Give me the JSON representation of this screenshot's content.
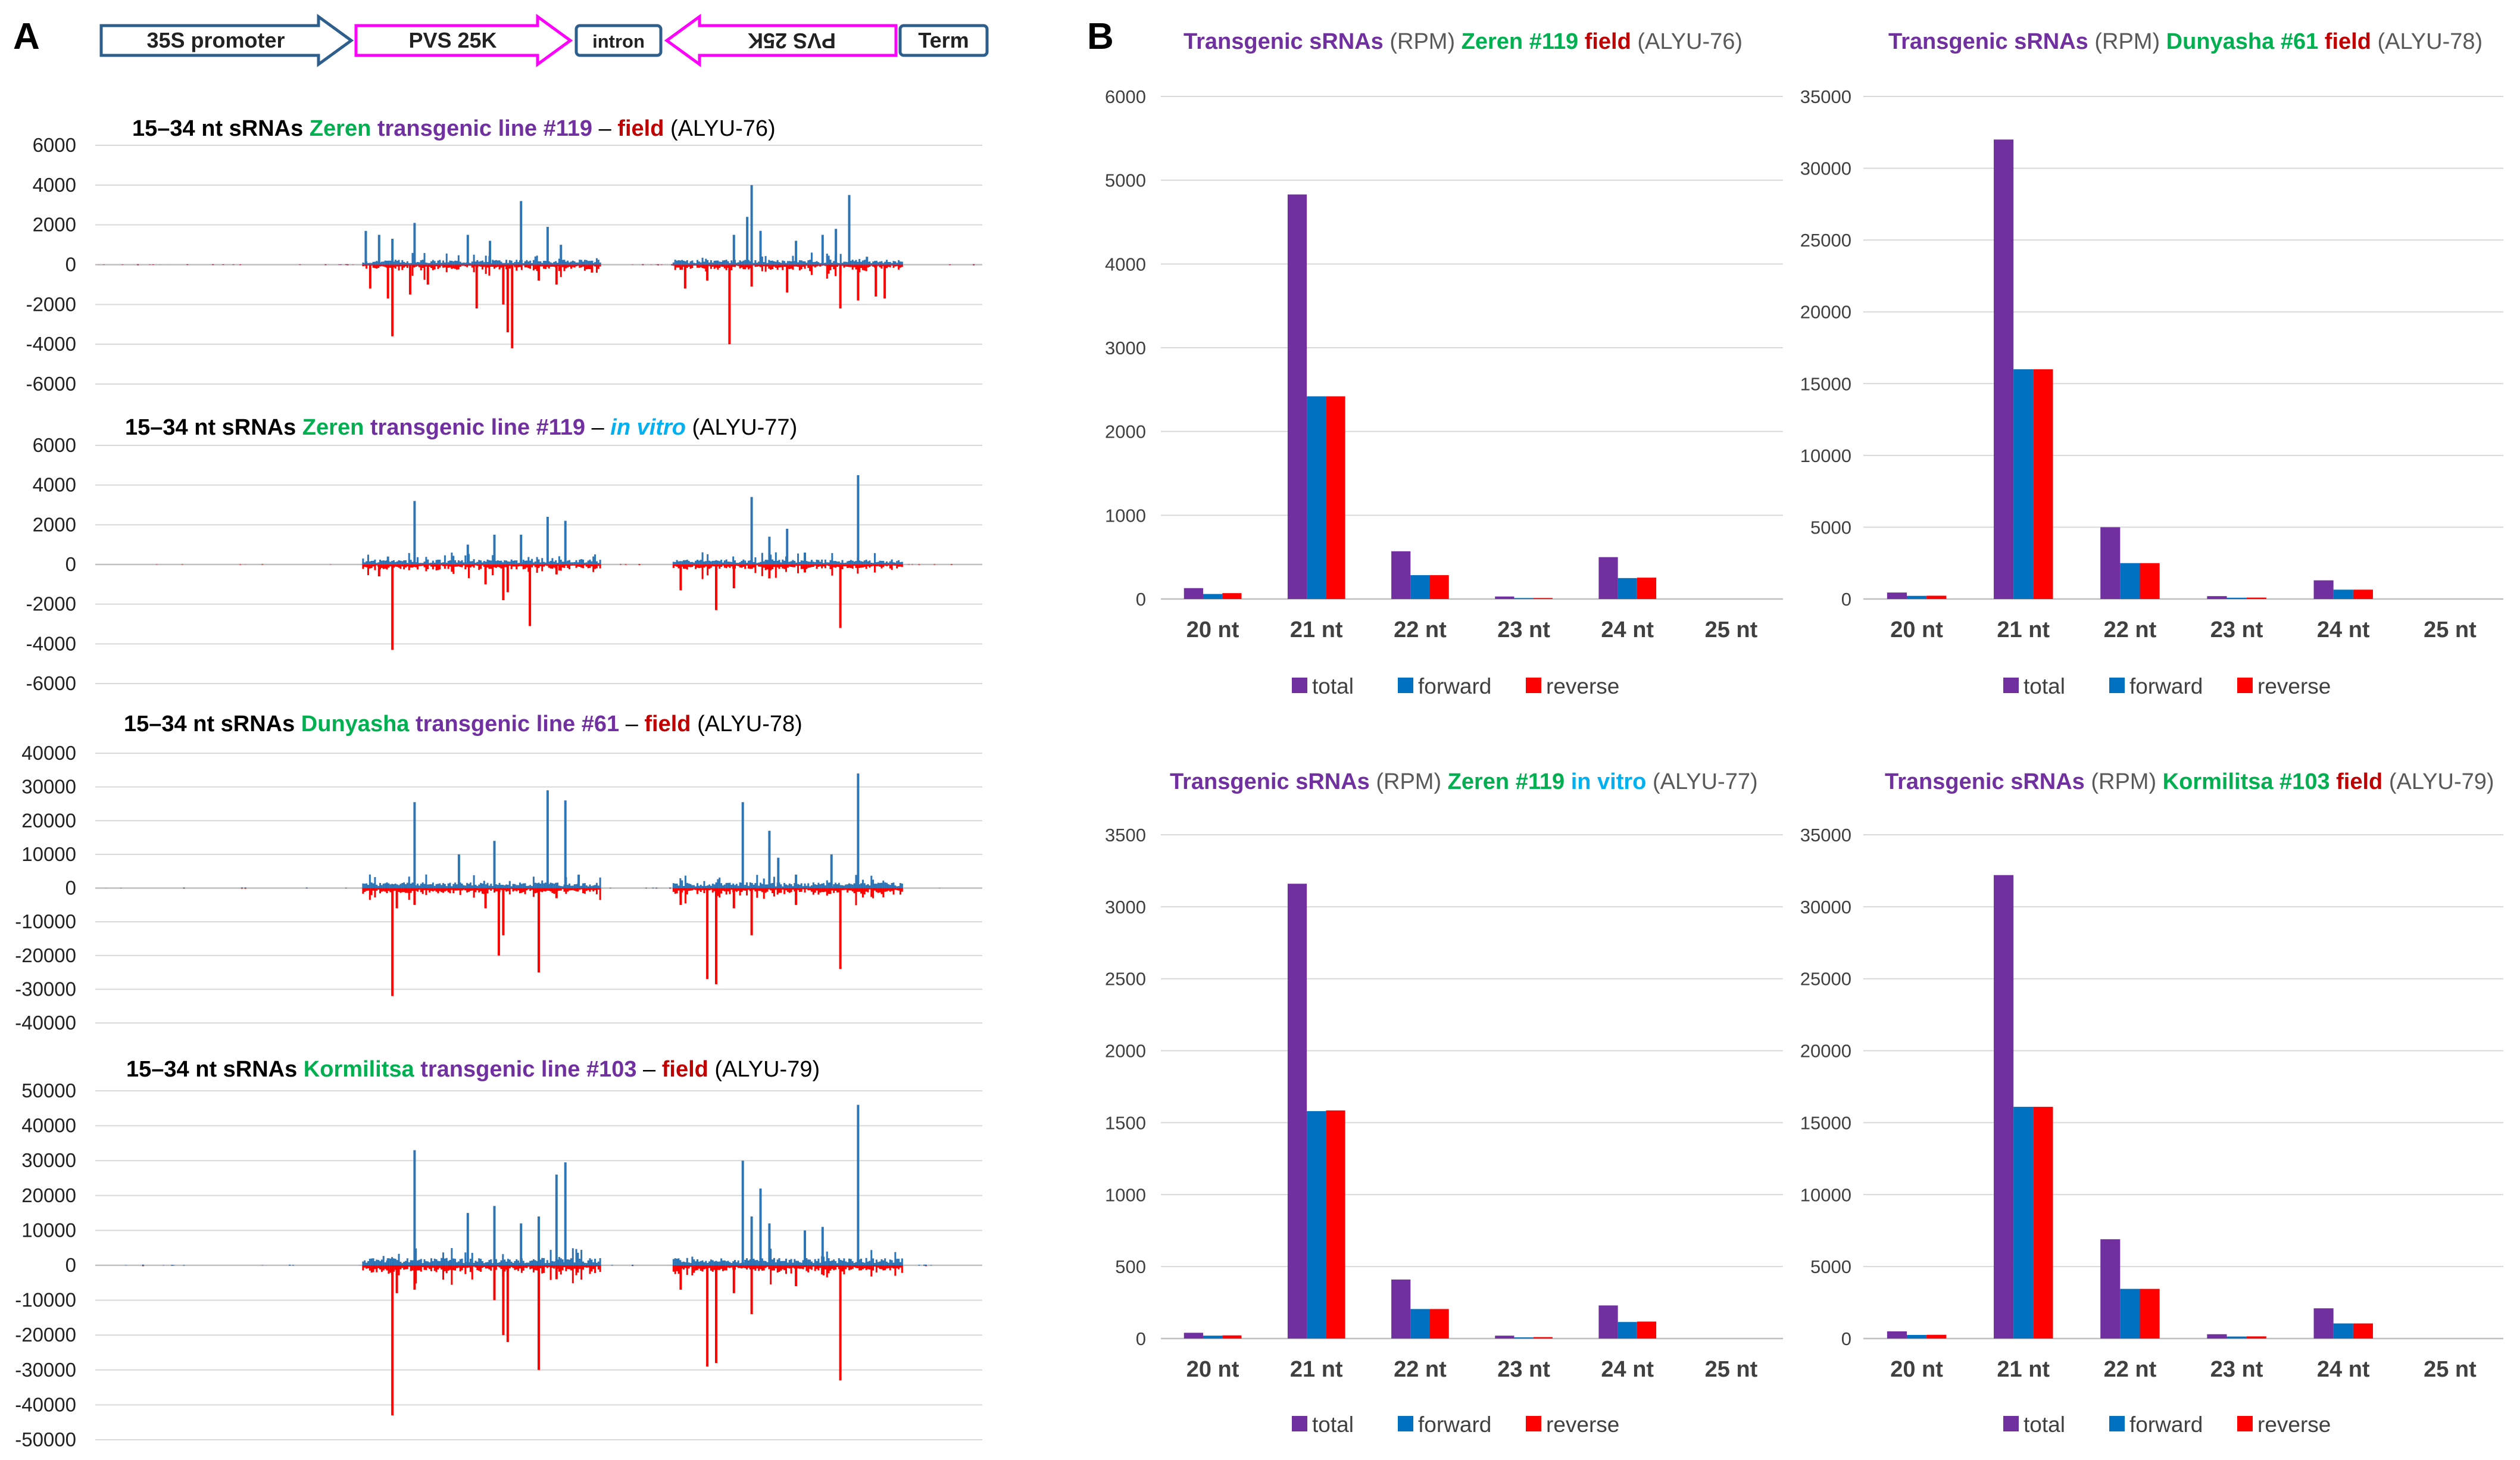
{
  "panels": {
    "a": "A",
    "b": "B"
  },
  "construct": {
    "items": [
      {
        "label": "35S promoter",
        "shape": "arrow-right",
        "color": "#2e5e8c"
      },
      {
        "label": "PVS 25K",
        "shape": "arrow-right",
        "color": "#ff00ff"
      },
      {
        "label": "intron",
        "shape": "box",
        "color": "#2e5e8c"
      },
      {
        "label": "PVS 25K",
        "shape": "arrow-left",
        "color": "#ff00ff",
        "flipped": true
      },
      {
        "label": "Term",
        "shape": "box",
        "color": "#2e5e8c"
      }
    ]
  },
  "colors": {
    "total": "#7030a0",
    "forward": "#0070c0",
    "reverse": "#ff0000",
    "title_purple": "#7030a0",
    "title_green": "#00b050",
    "title_darkred": "#c00000",
    "title_cyan": "#00b0f0",
    "title_gray": "#595959",
    "coverage_pos": "#2e75b6",
    "coverage_neg": "#ff0000"
  },
  "chart_data": [
    {
      "type": "area",
      "panel": "A",
      "title_parts": [
        {
          "text": "15–34 nt sRNAs",
          "color": "#000000",
          "bold": true
        },
        {
          "text": "Zeren",
          "color": "#00b050",
          "bold": true
        },
        {
          "text": "transgenic line #119",
          "color": "#7030a0",
          "bold": true
        },
        {
          "text": "–",
          "color": "#000000",
          "bold": false
        },
        {
          "text": "field",
          "color": "#c00000",
          "bold": true
        },
        {
          "text": "(ALYU-76)",
          "color": "#000000",
          "bold": false
        }
      ],
      "yticks": [
        6000,
        4000,
        2000,
        0,
        -2000,
        -4000,
        -6000
      ],
      "ylim": [
        -6000,
        6000
      ],
      "peaks_forward": [
        [
          0.305,
          1700
        ],
        [
          0.32,
          1500
        ],
        [
          0.335,
          1300
        ],
        [
          0.36,
          2100
        ],
        [
          0.42,
          1500
        ],
        [
          0.445,
          1200
        ],
        [
          0.48,
          3200
        ],
        [
          0.51,
          1900
        ],
        [
          0.525,
          1000
        ],
        [
          0.56,
          200
        ],
        [
          0.72,
          1500
        ],
        [
          0.735,
          2400
        ],
        [
          0.74,
          4000
        ],
        [
          0.75,
          1700
        ],
        [
          0.79,
          1200
        ],
        [
          0.82,
          1500
        ],
        [
          0.835,
          1800
        ],
        [
          0.85,
          3500
        ],
        [
          0.87,
          400
        ]
      ],
      "peaks_reverse": [
        [
          0.31,
          -1200
        ],
        [
          0.33,
          -1700
        ],
        [
          0.335,
          -3600
        ],
        [
          0.355,
          -1500
        ],
        [
          0.375,
          -1000
        ],
        [
          0.43,
          -2200
        ],
        [
          0.46,
          -2000
        ],
        [
          0.465,
          -3400
        ],
        [
          0.47,
          -4200
        ],
        [
          0.5,
          -800
        ],
        [
          0.52,
          -1000
        ],
        [
          0.56,
          -400
        ],
        [
          0.665,
          -1200
        ],
        [
          0.69,
          -800
        ],
        [
          0.715,
          -4000
        ],
        [
          0.74,
          -1100
        ],
        [
          0.78,
          -1400
        ],
        [
          0.84,
          -2200
        ],
        [
          0.86,
          -1800
        ],
        [
          0.88,
          -1600
        ],
        [
          0.89,
          -1700
        ]
      ]
    },
    {
      "type": "area",
      "panel": "A",
      "title_parts": [
        {
          "text": "15–34 nt sRNAs",
          "color": "#000000",
          "bold": true
        },
        {
          "text": "Zeren",
          "color": "#00b050",
          "bold": true
        },
        {
          "text": "transgenic line #119",
          "color": "#7030a0",
          "bold": true
        },
        {
          "text": "–",
          "color": "#000000",
          "bold": false
        },
        {
          "text": "in vitro",
          "color": "#00b0f0",
          "bold": true,
          "italic": true
        },
        {
          "text": "(ALYU-77)",
          "color": "#000000",
          "bold": false
        }
      ],
      "yticks": [
        6000,
        4000,
        2000,
        0,
        -2000,
        -4000,
        -6000
      ],
      "ylim": [
        -6000,
        6000
      ],
      "peaks_forward": [
        [
          0.36,
          3200
        ],
        [
          0.33,
          400
        ],
        [
          0.42,
          1000
        ],
        [
          0.45,
          1500
        ],
        [
          0.48,
          1500
        ],
        [
          0.51,
          2400
        ],
        [
          0.53,
          2200
        ],
        [
          0.74,
          3400
        ],
        [
          0.76,
          1400
        ],
        [
          0.78,
          1800
        ],
        [
          0.86,
          4500
        ],
        [
          0.8,
          600
        ]
      ],
      "peaks_reverse": [
        [
          0.335,
          -4300
        ],
        [
          0.32,
          -600
        ],
        [
          0.44,
          -1000
        ],
        [
          0.46,
          -1800
        ],
        [
          0.465,
          -1400
        ],
        [
          0.49,
          -3100
        ],
        [
          0.52,
          -500
        ],
        [
          0.66,
          -1300
        ],
        [
          0.7,
          -2300
        ],
        [
          0.72,
          -1200
        ],
        [
          0.76,
          -700
        ],
        [
          0.84,
          -3200
        ],
        [
          0.8,
          -400
        ]
      ]
    },
    {
      "type": "area",
      "panel": "A",
      "title_parts": [
        {
          "text": "15–34 nt sRNAs",
          "color": "#000000",
          "bold": true
        },
        {
          "text": "Dunyasha",
          "color": "#00b050",
          "bold": true
        },
        {
          "text": "transgenic line #61",
          "color": "#7030a0",
          "bold": true
        },
        {
          "text": "–",
          "color": "#000000",
          "bold": false
        },
        {
          "text": "field",
          "color": "#c00000",
          "bold": true
        },
        {
          "text": "(ALYU-78)",
          "color": "#000000",
          "bold": false
        }
      ],
      "yticks": [
        40000,
        30000,
        20000,
        10000,
        0,
        -10000,
        -20000,
        -30000,
        -40000
      ],
      "ylim": [
        -40000,
        40000
      ],
      "peaks_forward": [
        [
          0.36,
          25500
        ],
        [
          0.41,
          10000
        ],
        [
          0.45,
          14000
        ],
        [
          0.51,
          29000
        ],
        [
          0.53,
          26000
        ],
        [
          0.545,
          4000
        ],
        [
          0.73,
          25500
        ],
        [
          0.76,
          17000
        ],
        [
          0.77,
          9000
        ],
        [
          0.83,
          10000
        ],
        [
          0.86,
          34000
        ],
        [
          0.79,
          4000
        ]
      ],
      "peaks_reverse": [
        [
          0.335,
          -32000
        ],
        [
          0.34,
          -6000
        ],
        [
          0.36,
          -5000
        ],
        [
          0.44,
          -6000
        ],
        [
          0.455,
          -20000
        ],
        [
          0.46,
          -14000
        ],
        [
          0.5,
          -25000
        ],
        [
          0.52,
          -3000
        ],
        [
          0.66,
          -5000
        ],
        [
          0.69,
          -27000
        ],
        [
          0.7,
          -28500
        ],
        [
          0.72,
          -6000
        ],
        [
          0.74,
          -14000
        ],
        [
          0.79,
          -5000
        ],
        [
          0.84,
          -24000
        ]
      ]
    },
    {
      "type": "area",
      "panel": "A",
      "title_parts": [
        {
          "text": "15–34 nt sRNAs",
          "color": "#000000",
          "bold": true
        },
        {
          "text": "Kormilitsa",
          "color": "#00b050",
          "bold": true
        },
        {
          "text": "transgenic line #103",
          "color": "#7030a0",
          "bold": true
        },
        {
          "text": "–",
          "color": "#000000",
          "bold": false
        },
        {
          "text": "field",
          "color": "#c00000",
          "bold": true
        },
        {
          "text": "(ALYU-79)",
          "color": "#000000",
          "bold": false
        }
      ],
      "yticks": [
        50000,
        40000,
        30000,
        20000,
        10000,
        0,
        -10000,
        -20000,
        -30000,
        -40000,
        -50000
      ],
      "ylim": [
        -50000,
        50000
      ],
      "peaks_forward": [
        [
          0.36,
          33000
        ],
        [
          0.42,
          15000
        ],
        [
          0.45,
          17000
        ],
        [
          0.48,
          12000
        ],
        [
          0.5,
          14000
        ],
        [
          0.52,
          26000
        ],
        [
          0.53,
          29500
        ],
        [
          0.73,
          30000
        ],
        [
          0.74,
          14000
        ],
        [
          0.75,
          22000
        ],
        [
          0.76,
          12000
        ],
        [
          0.8,
          10000
        ],
        [
          0.82,
          11000
        ],
        [
          0.86,
          46000
        ],
        [
          0.33,
          2000
        ]
      ],
      "peaks_reverse": [
        [
          0.335,
          -43000
        ],
        [
          0.34,
          -8000
        ],
        [
          0.36,
          -7000
        ],
        [
          0.45,
          -10000
        ],
        [
          0.46,
          -20000
        ],
        [
          0.465,
          -22000
        ],
        [
          0.5,
          -30000
        ],
        [
          0.52,
          -4000
        ],
        [
          0.66,
          -7000
        ],
        [
          0.69,
          -29000
        ],
        [
          0.7,
          -28000
        ],
        [
          0.72,
          -8000
        ],
        [
          0.74,
          -14000
        ],
        [
          0.79,
          -6000
        ],
        [
          0.84,
          -33000
        ]
      ]
    },
    {
      "type": "bar",
      "panel": "B",
      "title_parts": [
        {
          "text": "Transgenic sRNAs",
          "color": "#7030a0",
          "bold": true
        },
        {
          "text": "(RPM)",
          "color": "#595959",
          "bold": false
        },
        {
          "text": "Zeren #119",
          "color": "#00b050",
          "bold": true
        },
        {
          "text": "field",
          "color": "#c00000",
          "bold": true
        },
        {
          "text": "(ALYU-76)",
          "color": "#595959",
          "bold": false
        }
      ],
      "categories": [
        "20 nt",
        "21 nt",
        "22 nt",
        "23 nt",
        "24 nt",
        "25 nt"
      ],
      "series": [
        {
          "name": "total",
          "values": [
            130,
            4830,
            570,
            30,
            500,
            0
          ]
        },
        {
          "name": "forward",
          "values": [
            60,
            2420,
            285,
            12,
            250,
            0
          ]
        },
        {
          "name": "reverse",
          "values": [
            70,
            2420,
            285,
            12,
            255,
            0
          ]
        }
      ],
      "yticks": [
        0,
        1000,
        2000,
        3000,
        4000,
        5000,
        6000
      ],
      "ylim": [
        0,
        6000
      ]
    },
    {
      "type": "bar",
      "panel": "B",
      "title_parts": [
        {
          "text": "Transgenic sRNAs",
          "color": "#7030a0",
          "bold": true
        },
        {
          "text": "(RPM)",
          "color": "#595959",
          "bold": false
        },
        {
          "text": "Dunyasha #61",
          "color": "#00b050",
          "bold": true
        },
        {
          "text": "field",
          "color": "#c00000",
          "bold": true
        },
        {
          "text": "(ALYU-78)",
          "color": "#595959",
          "bold": false
        }
      ],
      "categories": [
        "20 nt",
        "21 nt",
        "22 nt",
        "23 nt",
        "24 nt",
        "25 nt"
      ],
      "series": [
        {
          "name": "total",
          "values": [
            450,
            32000,
            5000,
            200,
            1300,
            0
          ]
        },
        {
          "name": "forward",
          "values": [
            220,
            16000,
            2500,
            90,
            650,
            0
          ]
        },
        {
          "name": "reverse",
          "values": [
            230,
            16000,
            2500,
            100,
            650,
            0
          ]
        }
      ],
      "yticks": [
        0,
        5000,
        10000,
        15000,
        20000,
        25000,
        30000,
        35000
      ],
      "ylim": [
        0,
        35000
      ]
    },
    {
      "type": "bar",
      "panel": "B",
      "title_parts": [
        {
          "text": "Transgenic sRNAs",
          "color": "#7030a0",
          "bold": true
        },
        {
          "text": "(RPM)",
          "color": "#595959",
          "bold": false
        },
        {
          "text": "Zeren #119",
          "color": "#00b050",
          "bold": true
        },
        {
          "text": "in vitro",
          "color": "#00b0f0",
          "bold": true
        },
        {
          "text": "(ALYU-77)",
          "color": "#595959",
          "bold": false
        }
      ],
      "categories": [
        "20 nt",
        "21 nt",
        "22 nt",
        "23 nt",
        "24 nt",
        "25 nt"
      ],
      "series": [
        {
          "name": "total",
          "values": [
            40,
            3160,
            410,
            20,
            230,
            0
          ]
        },
        {
          "name": "forward",
          "values": [
            20,
            1580,
            205,
            8,
            115,
            0
          ]
        },
        {
          "name": "reverse",
          "values": [
            22,
            1585,
            205,
            10,
            118,
            0
          ]
        }
      ],
      "yticks": [
        0,
        500,
        1000,
        1500,
        2000,
        2500,
        3000,
        3500
      ],
      "ylim": [
        0,
        3500
      ]
    },
    {
      "type": "bar",
      "panel": "B",
      "title_parts": [
        {
          "text": "Transgenic sRNAs",
          "color": "#7030a0",
          "bold": true
        },
        {
          "text": "(RPM)",
          "color": "#595959",
          "bold": false
        },
        {
          "text": "Kormilitsa #103",
          "color": "#00b050",
          "bold": true
        },
        {
          "text": "field",
          "color": "#c00000",
          "bold": true
        },
        {
          "text": "(ALYU-79)",
          "color": "#595959",
          "bold": false
        }
      ],
      "categories": [
        "20 nt",
        "21 nt",
        "22 nt",
        "23 nt",
        "24 nt",
        "25 nt"
      ],
      "series": [
        {
          "name": "total",
          "values": [
            500,
            32200,
            6900,
            300,
            2100,
            0
          ]
        },
        {
          "name": "forward",
          "values": [
            250,
            16100,
            3450,
            140,
            1050,
            0
          ]
        },
        {
          "name": "reverse",
          "values": [
            260,
            16100,
            3450,
            150,
            1050,
            0
          ]
        }
      ],
      "yticks": [
        0,
        5000,
        10000,
        15000,
        20000,
        25000,
        30000,
        35000
      ],
      "ylim": [
        0,
        35000
      ]
    }
  ]
}
